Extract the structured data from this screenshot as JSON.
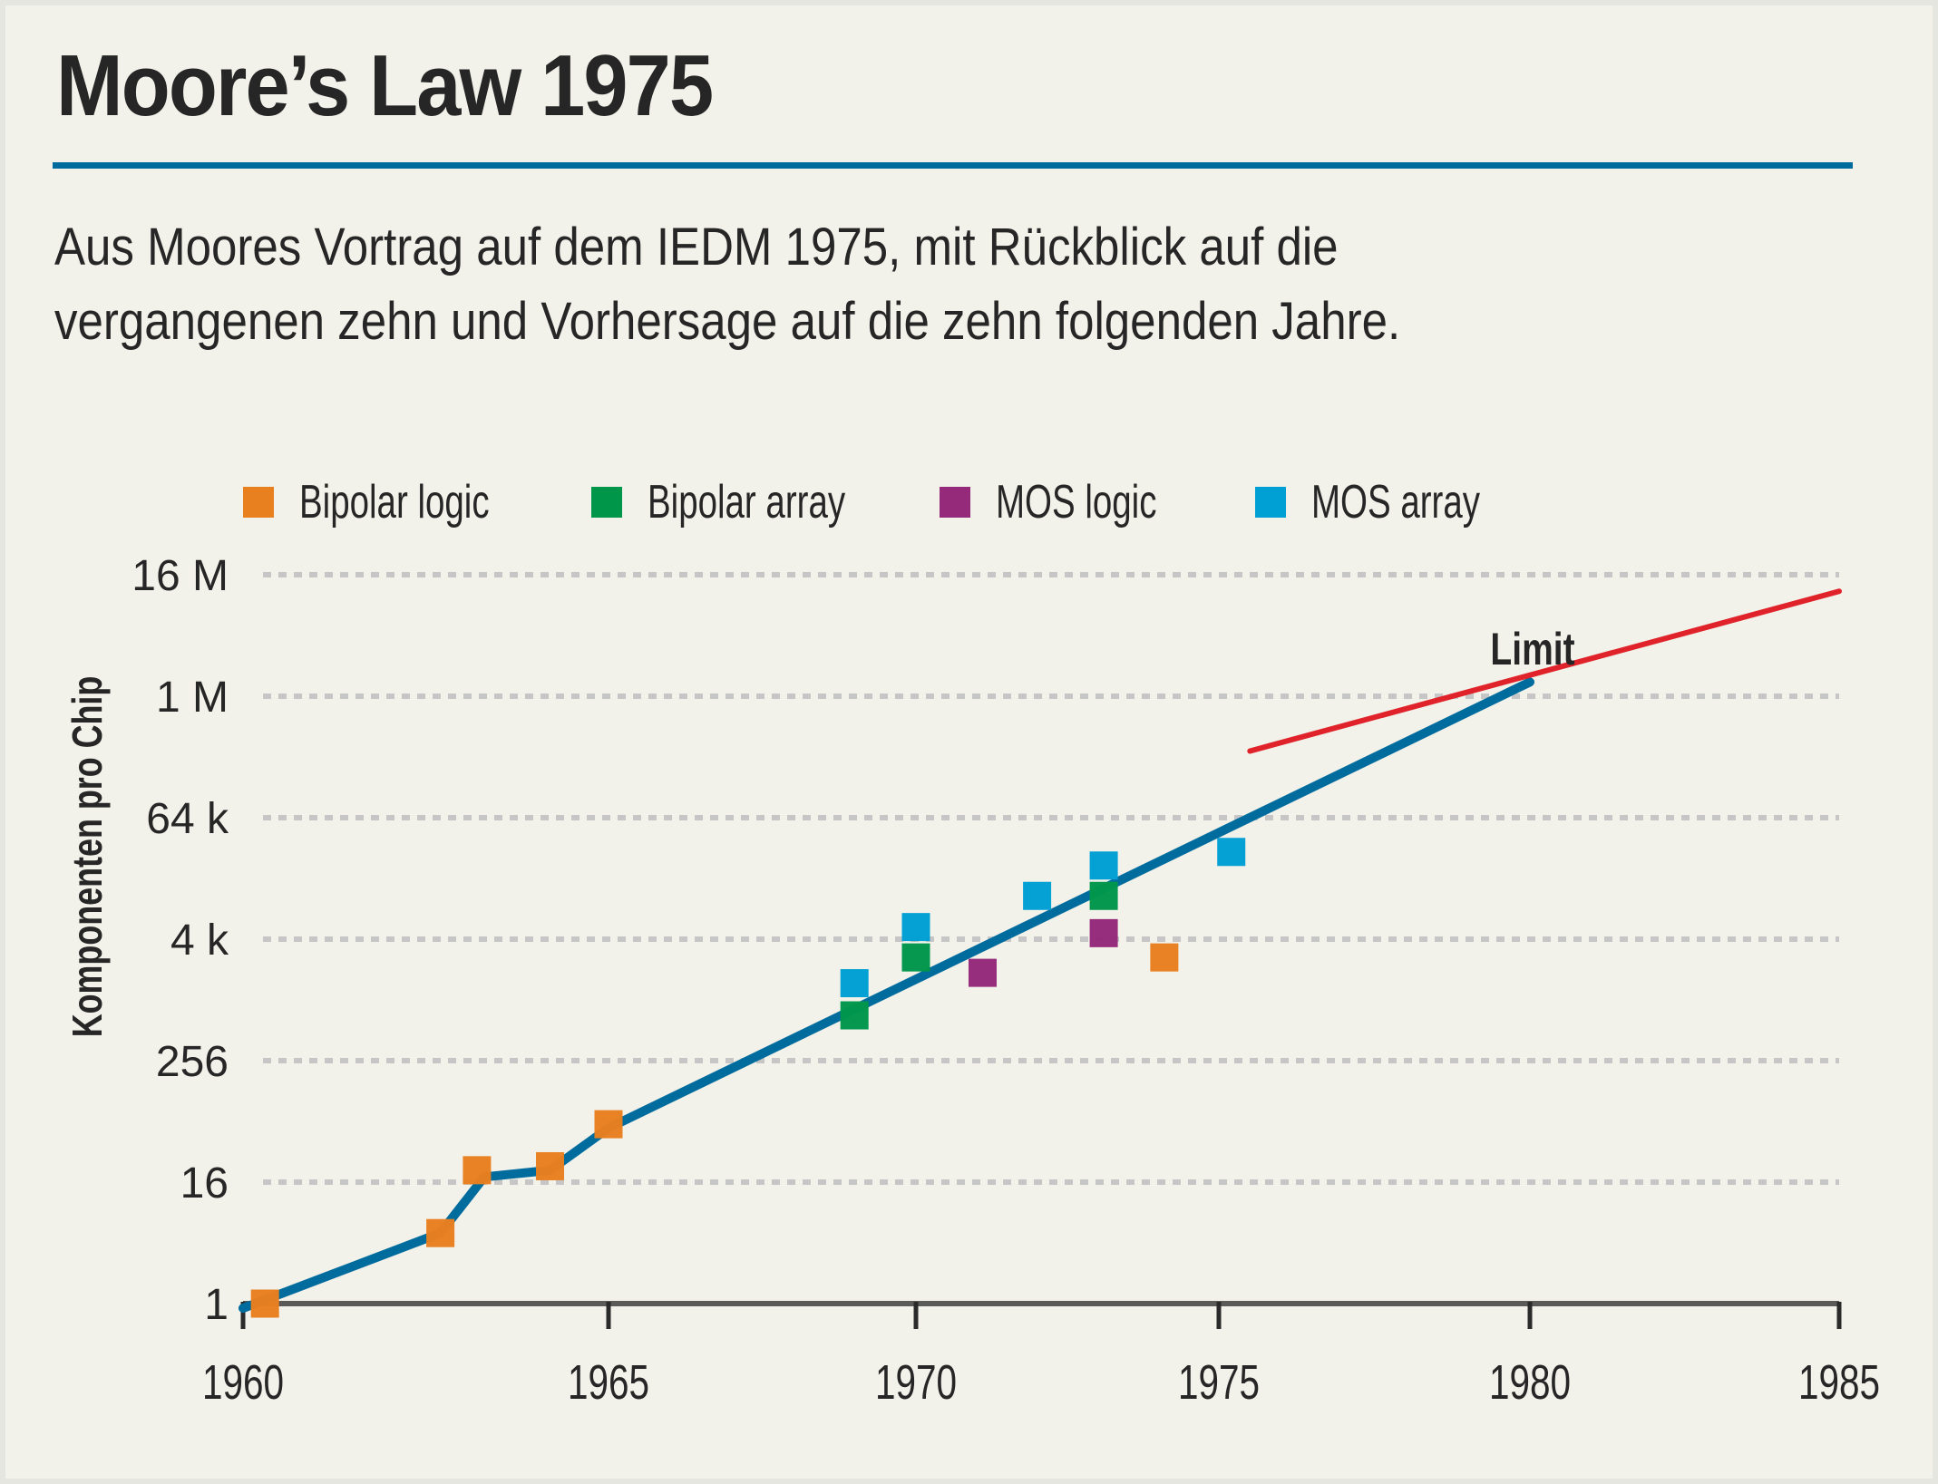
{
  "header": {
    "title": "Moore’s Law 1975",
    "subtitle_lines": [
      "Aus Moores Vortrag auf dem IEDM 1975, mit Rückblick auf die",
      "vergangenen zehn und Vorhersage auf die zehn folgenden Jahre."
    ]
  },
  "colors": {
    "rule": "#006c9e",
    "trend": "#006c9e",
    "limit": "#e0222a",
    "grid": "#c6c6c6",
    "axis": "#5a5a58",
    "bipolar_logic": "#e88020",
    "bipolar_array": "#00964a",
    "mos_logic": "#952a7a",
    "mos_array": "#009fd4"
  },
  "chart_data": {
    "type": "scatter",
    "title": "Moore’s Law 1975",
    "xlabel": "",
    "ylabel": "Komponenten pro Chip",
    "y_scale": "log2",
    "xlim": [
      1960,
      1985
    ],
    "ylim": [
      1,
      16777216
    ],
    "grid": true,
    "legend_position": "top",
    "x_ticks": [
      1960,
      1965,
      1970,
      1975,
      1980,
      1985
    ],
    "x_tick_labels": [
      "1960",
      "1965",
      "1970",
      "1975",
      "1980",
      "1985"
    ],
    "y_ticks": [
      1,
      16,
      256,
      4096,
      65536,
      1048576,
      16777216
    ],
    "y_tick_labels": [
      "1",
      "16",
      "256",
      "4 k",
      "64 k",
      "1 M",
      "16 M"
    ],
    "series": [
      {
        "name": "Bipolar logic",
        "color_key": "bipolar_logic",
        "points": [
          {
            "x": 1960.3,
            "y": 1
          },
          {
            "x": 1962.7,
            "y": 5
          },
          {
            "x": 1963.2,
            "y": 21
          },
          {
            "x": 1964.2,
            "y": 23
          },
          {
            "x": 1965.0,
            "y": 60
          },
          {
            "x": 1974.1,
            "y": 2700
          }
        ]
      },
      {
        "name": "Bipolar array",
        "color_key": "bipolar_array",
        "points": [
          {
            "x": 1969.0,
            "y": 720
          },
          {
            "x": 1970.0,
            "y": 2700
          },
          {
            "x": 1973.1,
            "y": 11000
          }
        ]
      },
      {
        "name": "MOS logic",
        "color_key": "mos_logic",
        "points": [
          {
            "x": 1971.1,
            "y": 1900
          },
          {
            "x": 1973.1,
            "y": 4700
          }
        ]
      },
      {
        "name": "MOS array",
        "color_key": "mos_array",
        "points": [
          {
            "x": 1969.0,
            "y": 1500
          },
          {
            "x": 1970.0,
            "y": 5400
          },
          {
            "x": 1972.0,
            "y": 11000
          },
          {
            "x": 1973.1,
            "y": 22000
          },
          {
            "x": 1975.2,
            "y": 30000
          }
        ]
      }
    ],
    "lines": [
      {
        "name": "Trend",
        "color_key": "trend",
        "points": [
          {
            "x": 1960.0,
            "y": 0.9
          },
          {
            "x": 1962.7,
            "y": 5
          },
          {
            "x": 1963.3,
            "y": 18
          },
          {
            "x": 1964.2,
            "y": 21
          },
          {
            "x": 1965.0,
            "y": 55
          },
          {
            "x": 1980.0,
            "y": 1450000
          }
        ]
      },
      {
        "name": "Limit",
        "label": "Limit",
        "color_key": "limit",
        "points": [
          {
            "x": 1975.5,
            "y": 300000
          },
          {
            "x": 1985.0,
            "y": 11500000
          }
        ]
      }
    ]
  }
}
